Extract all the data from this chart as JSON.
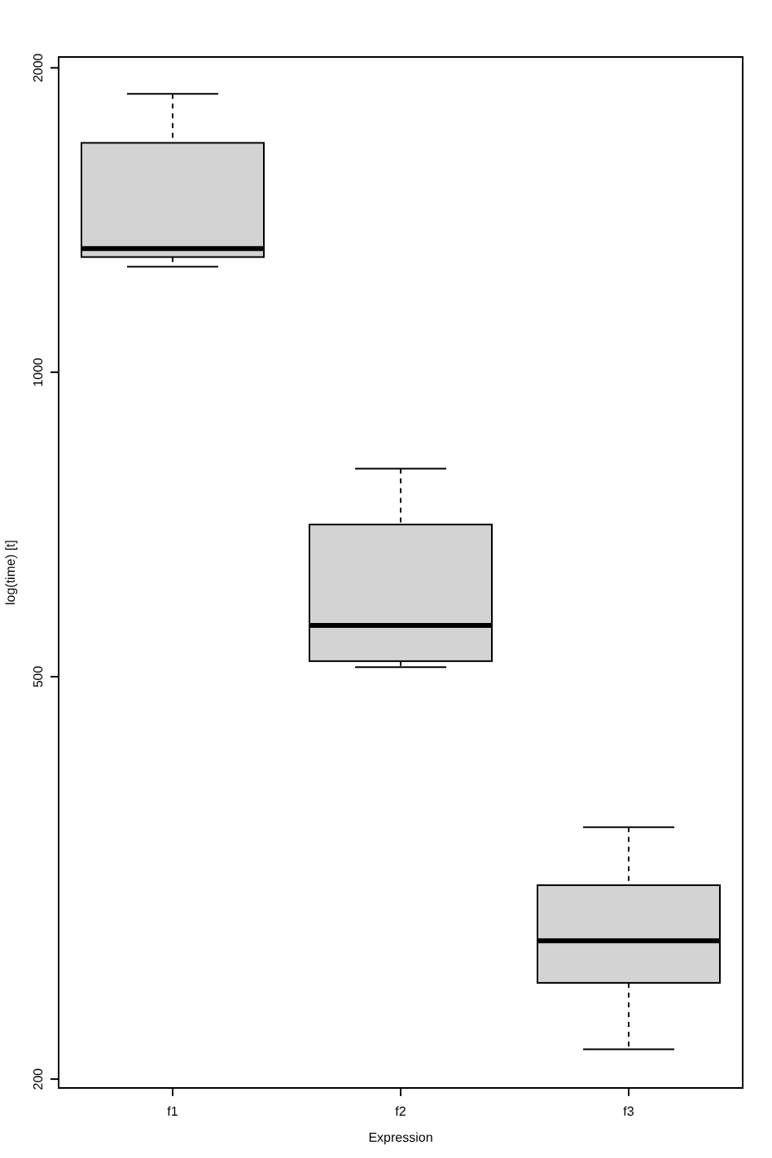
{
  "chart_data": {
    "type": "box",
    "xlabel": "Expression",
    "ylabel": "log(time) [t]",
    "categories": [
      "f1",
      "f2",
      "f3"
    ],
    "log": true,
    "ylim": [
      196,
      2050
    ],
    "yticks": [
      200,
      500,
      1000,
      2000
    ],
    "color": "#d3d3d3",
    "grid": false,
    "boxes": [
      {
        "low": 1272,
        "q1": 1300,
        "median": 1325,
        "q3": 1686,
        "high": 1885
      },
      {
        "low": 511,
        "q1": 518,
        "median": 562,
        "q3": 707,
        "high": 803
      },
      {
        "low": 214,
        "q1": 249,
        "median": 274,
        "q3": 311,
        "high": 355
      }
    ]
  }
}
